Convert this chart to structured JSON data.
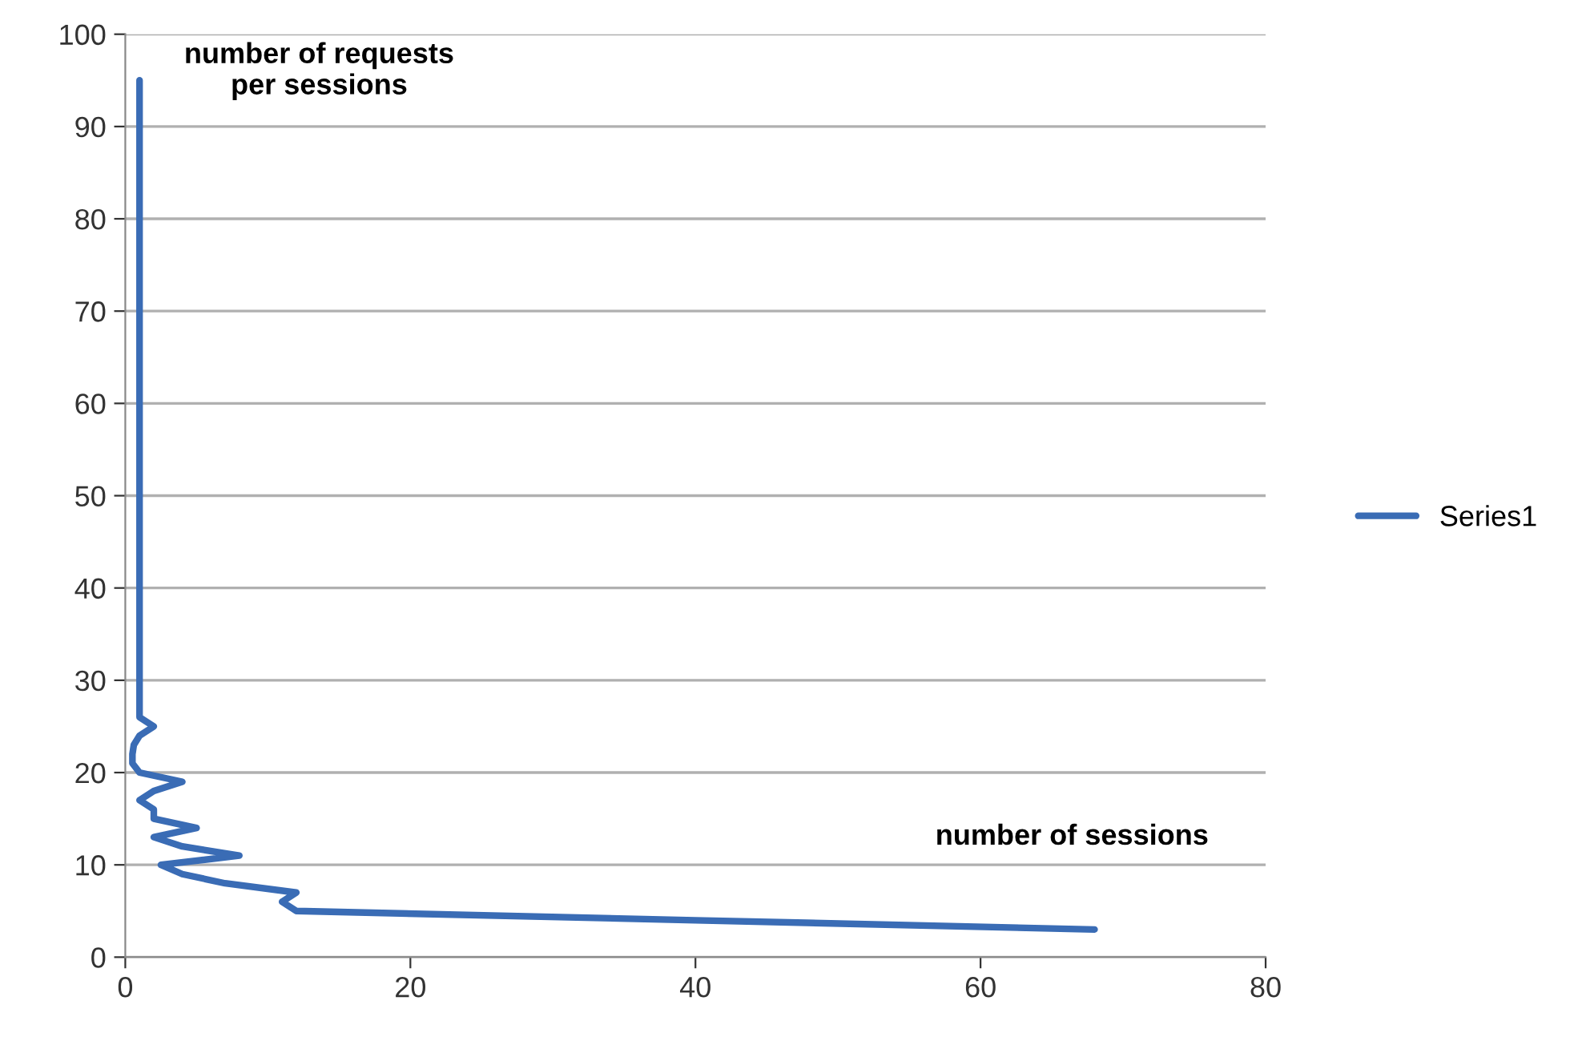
{
  "chart_data": {
    "type": "line",
    "xlabel": "number of sessions",
    "ylabel": "number of requests\nper sessions",
    "series": [
      {
        "name": "Series1",
        "color": "#3a6cb5",
        "x": [
          68,
          40,
          12,
          11,
          12,
          7,
          4,
          2.5,
          8,
          4,
          2,
          5,
          2,
          2,
          1,
          2,
          4,
          1,
          0.5,
          0.5,
          0.6,
          1,
          2,
          1,
          1,
          1
        ],
        "values": [
          3,
          4,
          5,
          6,
          7,
          8,
          9,
          10,
          11,
          12,
          13,
          14,
          15,
          16,
          17,
          18,
          19,
          20,
          21,
          22,
          23,
          24,
          25,
          26,
          60,
          95
        ]
      }
    ],
    "xlim": [
      0,
      80
    ],
    "xticks": [
      0,
      20,
      40,
      60,
      80
    ],
    "ylim": [
      0,
      100
    ],
    "yticks": [
      0,
      10,
      20,
      30,
      40,
      50,
      60,
      70,
      80,
      90,
      100
    ],
    "grid": "y",
    "legend": "right",
    "marker": "none",
    "line_style": "solid"
  }
}
